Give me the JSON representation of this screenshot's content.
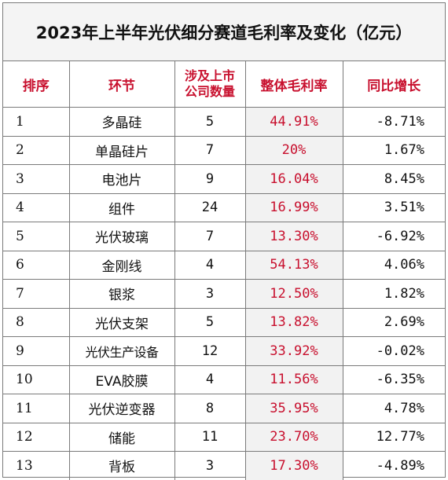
{
  "title": "2023年上半年光伏细分赛道毛利率及变化（亿元）",
  "headers": {
    "rank": "排序",
    "stage": "环节",
    "count_line1": "涉及上市",
    "count_line2": "公司数量",
    "margin": "整体毛利率",
    "yoy": "同比增长"
  },
  "rows": [
    {
      "rank": "1",
      "stage": "多晶硅",
      "count": "5",
      "margin": "44.91%",
      "yoy": "-8.71%"
    },
    {
      "rank": "2",
      "stage": "单晶硅片",
      "count": "7",
      "margin": "20%",
      "yoy": "1.67%"
    },
    {
      "rank": "3",
      "stage": "电池片",
      "count": "9",
      "margin": "16.04%",
      "yoy": "8.45%"
    },
    {
      "rank": "4",
      "stage": "组件",
      "count": "24",
      "margin": "16.99%",
      "yoy": "3.51%"
    },
    {
      "rank": "5",
      "stage": "光伏玻璃",
      "count": "7",
      "margin": "13.30%",
      "yoy": "-6.92%"
    },
    {
      "rank": "6",
      "stage": "金刚线",
      "count": "4",
      "margin": "54.13%",
      "yoy": "4.06%"
    },
    {
      "rank": "7",
      "stage": "银浆",
      "count": "3",
      "margin": "12.50%",
      "yoy": "1.82%"
    },
    {
      "rank": "8",
      "stage": "光伏支架",
      "count": "5",
      "margin": "13.82%",
      "yoy": "2.69%"
    },
    {
      "rank": "9",
      "stage": "光伏生产设备",
      "count": "12",
      "margin": "33.92%",
      "yoy": "-0.02%"
    },
    {
      "rank": "10",
      "stage": "EVA胶膜",
      "count": "4",
      "margin": "11.56%",
      "yoy": "-6.35%"
    },
    {
      "rank": "11",
      "stage": "光伏逆变器",
      "count": "8",
      "margin": "35.95%",
      "yoy": "4.78%"
    },
    {
      "rank": "12",
      "stage": "储能",
      "count": "11",
      "margin": "23.70%",
      "yoy": "12.77%"
    },
    {
      "rank": "13",
      "stage": "背板",
      "count": "3",
      "margin": "17.30%",
      "yoy": "-4.89%"
    }
  ]
}
